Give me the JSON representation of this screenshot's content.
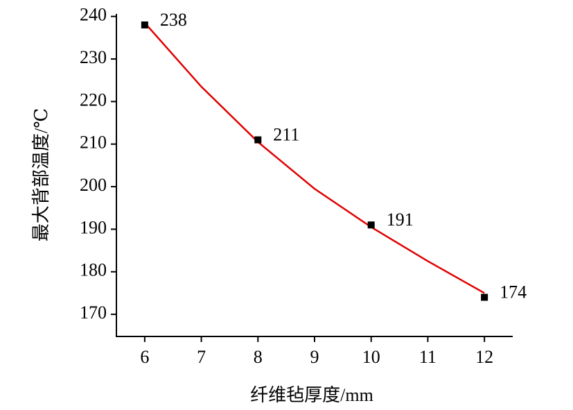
{
  "chart_data": {
    "type": "scatter",
    "x_label": "纤维毡厚度/mm",
    "y_label": "最大背部温度/℃",
    "x": [
      6,
      8,
      10,
      12
    ],
    "values": [
      238,
      211,
      191,
      174
    ],
    "color": "#000000",
    "fit": {
      "x": [
        6,
        7,
        8,
        9,
        10,
        11,
        12
      ],
      "values": [
        238.5,
        223.5,
        210.5,
        199.5,
        190.5,
        182.5,
        175
      ],
      "color": "#e00000"
    },
    "xlim": [
      5.5,
      12.5
    ],
    "xticks": [
      6,
      7,
      8,
      9,
      10,
      11,
      12
    ],
    "ylim": [
      164.8,
      240.6
    ],
    "yticks": [
      170,
      180,
      190,
      200,
      210,
      220,
      230,
      240
    ]
  }
}
